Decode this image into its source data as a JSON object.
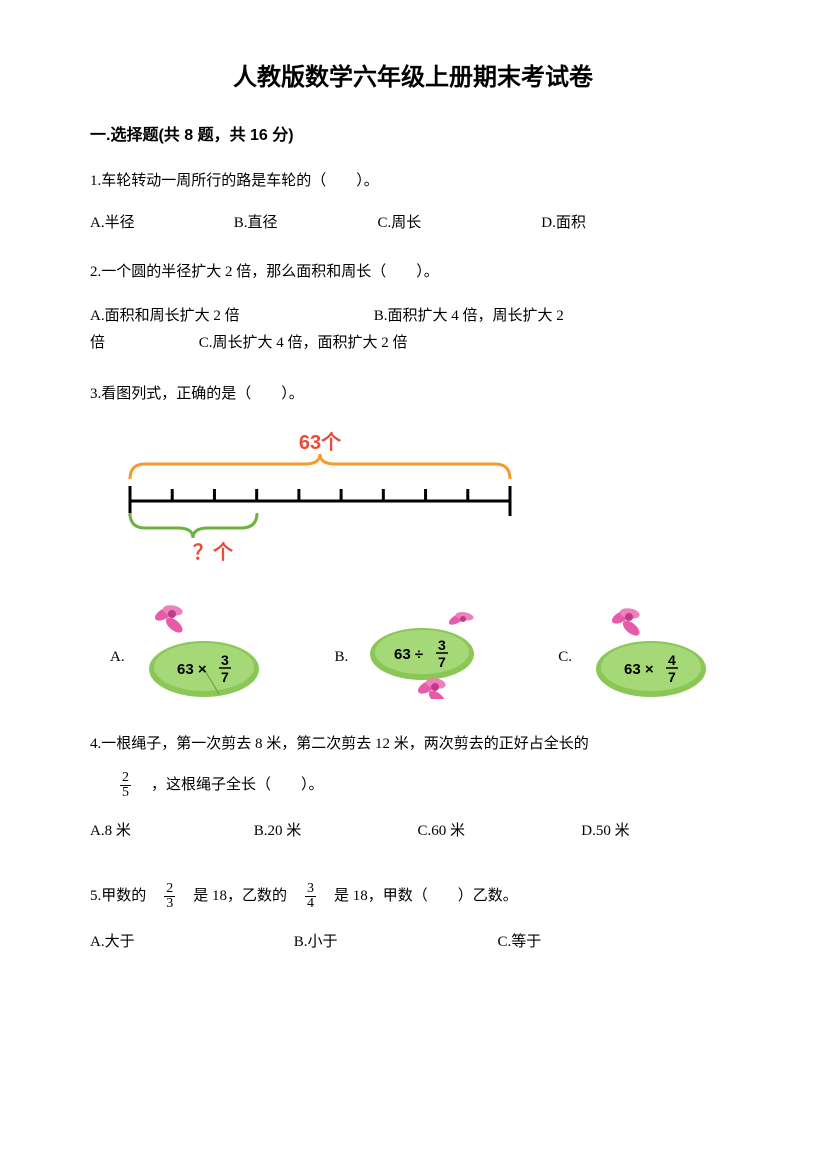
{
  "title": "人教版数学六年级上册期末考试卷",
  "section1": {
    "header": "一.选择题(共 8 题，共 16 分)",
    "q1": {
      "text": "1.车轮转动一周所行的路是车轮的（　　）。",
      "optA": "A.半径",
      "optB": "B.直径",
      "optC": "C.周长",
      "optD": "D.面积"
    },
    "q2": {
      "text": "2.一个圆的半径扩大 2 倍，那么面积和周长（　　）。",
      "optA": "A.面积和周长扩大 2 倍",
      "optB": "B.面积扩大 4 倍，周长扩大 2",
      "optB2": "倍",
      "optC": "C.周长扩大 4 倍，面积扩大 2 倍"
    },
    "q3": {
      "text": "3.看图列式，正确的是（　　）。",
      "diagram": {
        "top_label": "63个",
        "bottom_label": "？个",
        "ticks": 10,
        "brace_top_color": "#f29b2e",
        "brace_bottom_color": "#6cb33f",
        "line_color": "#000000",
        "label_color": "#e74c3c",
        "brace_span_bottom": 3
      },
      "opts": {
        "A": {
          "label": "A.",
          "expr_pre": "63 ×",
          "num": "3",
          "den": "7"
        },
        "B": {
          "label": "B.",
          "expr_pre": "63 ÷",
          "num": "3",
          "den": "7"
        },
        "C": {
          "label": "C.",
          "expr_pre": "63 ×",
          "num": "4",
          "den": "7"
        }
      },
      "lily_colors": {
        "leaf": "#8bc757",
        "leaf_dark": "#5ea033",
        "flower": "#e75ba8",
        "flower_dark": "#c33a89"
      }
    },
    "q4": {
      "text1": "4.一根绳子，第一次剪去 8 米，第二次剪去 12 米，两次剪去的正好占全长的",
      "frac_num": "2",
      "frac_den": "5",
      "text2": "，这根绳子全长（　　）。",
      "optA": "A.8 米",
      "optB": "B.20 米",
      "optC": "C.60 米",
      "optD": "D.50 米"
    },
    "q5": {
      "pre": "5.甲数的",
      "f1_num": "2",
      "f1_den": "3",
      "mid1": "是 18，乙数的",
      "f2_num": "3",
      "f2_den": "4",
      "mid2": "是 18，甲数（　　）乙数。",
      "optA": "A.大于",
      "optB": "B.小于",
      "optC": "C.等于"
    }
  }
}
